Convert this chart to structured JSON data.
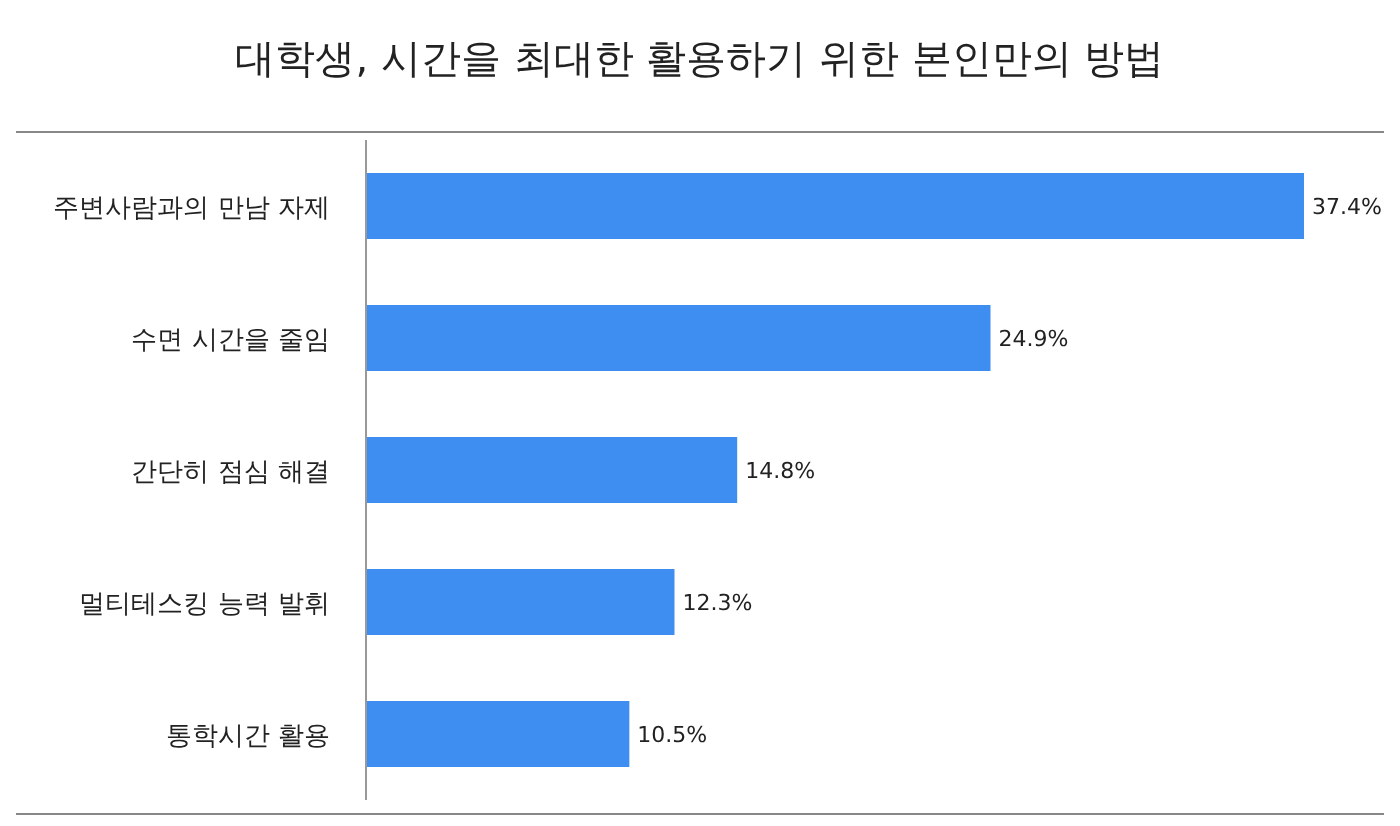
{
  "chart_data": {
    "type": "bar",
    "orientation": "horizontal",
    "title": "대학생, 시간을 최대한 활용하기 위한 본인만의 방법",
    "categories": [
      "주변사람과의 만남 자제",
      "수면 시간을 줄임",
      "간단히 점심 해결",
      "멀티테스킹 능력 발휘",
      "통학시간 활용"
    ],
    "values": [
      37.4,
      24.9,
      14.8,
      12.3,
      10.5
    ],
    "value_labels": [
      "37.4%",
      "24.9%",
      "14.8%",
      "12.3%",
      "10.5%"
    ],
    "color": "#3d8ef0"
  }
}
